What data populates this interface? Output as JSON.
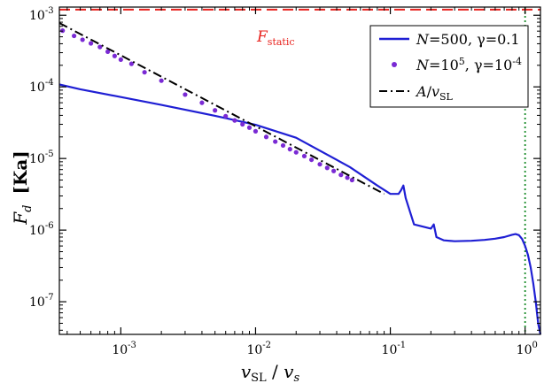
{
  "chart_data": {
    "type": "line",
    "title": "",
    "xlabel": {
      "main": "v",
      "main_sub": "SL",
      "sep": " / ",
      "den": "v",
      "den_sub": "s"
    },
    "ylabel": {
      "main": "F",
      "sub": "d",
      "unit": "[Ka]"
    },
    "xscale": "log",
    "yscale": "log",
    "xlim": [
      0.00035,
      1.3
    ],
    "ylim": [
      3.5e-08,
      0.0013
    ],
    "x_ticks": [
      {
        "value": 0.001,
        "base": "10",
        "exp": "-3"
      },
      {
        "value": 0.01,
        "base": "10",
        "exp": "-2"
      },
      {
        "value": 0.1,
        "base": "10",
        "exp": "-1"
      },
      {
        "value": 1,
        "base": "10",
        "exp": "0"
      }
    ],
    "y_ticks": [
      {
        "value": 1e-07,
        "base": "10",
        "exp": "-7"
      },
      {
        "value": 1e-06,
        "base": "10",
        "exp": "-6"
      },
      {
        "value": 1e-05,
        "base": "10",
        "exp": "-5"
      },
      {
        "value": 0.0001,
        "base": "10",
        "exp": "-4"
      },
      {
        "value": 0.001,
        "base": "10",
        "exp": "-3"
      }
    ],
    "grid": false,
    "legend_position": "top-right",
    "reference_lines": [
      {
        "orientation": "horizontal",
        "y": 0.0012,
        "color": "#e8231e",
        "style": "dashed",
        "label": {
          "main": "F",
          "sub": "static"
        }
      },
      {
        "orientation": "vertical",
        "x": 1.0,
        "color": "#1a8c2a",
        "style": "dotted"
      }
    ],
    "series": [
      {
        "legend": {
          "p1": "N",
          "p2": "=500, ",
          "p3": "γ",
          "p4": "=0.1"
        },
        "color": "#1f1fd4",
        "style": "solid",
        "x": [
          0.00035,
          0.0005,
          0.001,
          0.002,
          0.005,
          0.01,
          0.02,
          0.05,
          0.08,
          0.1,
          0.115,
          0.12,
          0.125,
          0.13,
          0.15,
          0.2,
          0.21,
          0.22,
          0.25,
          0.3,
          0.4,
          0.5,
          0.6,
          0.7,
          0.8,
          0.85,
          0.9,
          0.95,
          1.0,
          1.05,
          1.1,
          1.15,
          1.2,
          1.25,
          1.3
        ],
        "y": [
          0.000108,
          9.25e-05,
          7.2e-05,
          5.6e-05,
          3.95e-05,
          2.95e-05,
          1.95e-05,
          7.6e-06,
          4.2e-06,
          3.2e-06,
          3.2e-06,
          3.6e-06,
          4.2e-06,
          2.8e-06,
          1.2e-06,
          1.05e-06,
          1.2e-06,
          8e-07,
          7.2e-07,
          7e-07,
          7.1e-07,
          7.3e-07,
          7.6e-07,
          8e-07,
          8.6e-07,
          8.8e-07,
          8.5e-07,
          7.5e-07,
          6e-07,
          4.5e-07,
          3e-07,
          1.8e-07,
          1e-07,
          5e-08,
          3.5e-08
        ]
      },
      {
        "legend": {
          "p1": "N",
          "p2": "=10",
          "p2_sup": "5",
          "p3": ", γ",
          "p4": "=10",
          "p4_sup": "-4"
        },
        "color": "#7a2ad4",
        "style": "points",
        "x": [
          0.00037,
          0.00045,
          0.00052,
          0.0006,
          0.0007,
          0.0008,
          0.0009,
          0.001,
          0.0012,
          0.0015,
          0.002,
          0.003,
          0.004,
          0.005,
          0.006,
          0.007,
          0.008,
          0.009,
          0.01,
          0.012,
          0.014,
          0.016,
          0.018,
          0.02,
          0.023,
          0.026,
          0.03,
          0.034,
          0.038,
          0.043,
          0.048,
          0.052
        ],
        "y": [
          0.00061,
          0.000515,
          0.000455,
          0.000405,
          0.00036,
          0.00031,
          0.00027,
          0.00024,
          0.00021,
          0.00016,
          0.000122,
          7.8e-05,
          6e-05,
          4.7e-05,
          3.9e-05,
          3.4e-05,
          3e-05,
          2.7e-05,
          2.4e-05,
          2e-05,
          1.72e-05,
          1.52e-05,
          1.35e-05,
          1.22e-05,
          1.08e-05,
          9.6e-06,
          8.3e-06,
          7.4e-06,
          6.7e-06,
          5.9e-06,
          5.4e-06,
          5e-06
        ]
      },
      {
        "legend": {
          "p1": "A",
          "p2": "/",
          "p3": "v",
          "p3_sub": "SL"
        },
        "color": "#000000",
        "style": "dash-dot",
        "x": [
          0.00035,
          0.09
        ],
        "y": [
          0.00078,
          3.2e-06
        ]
      }
    ]
  }
}
